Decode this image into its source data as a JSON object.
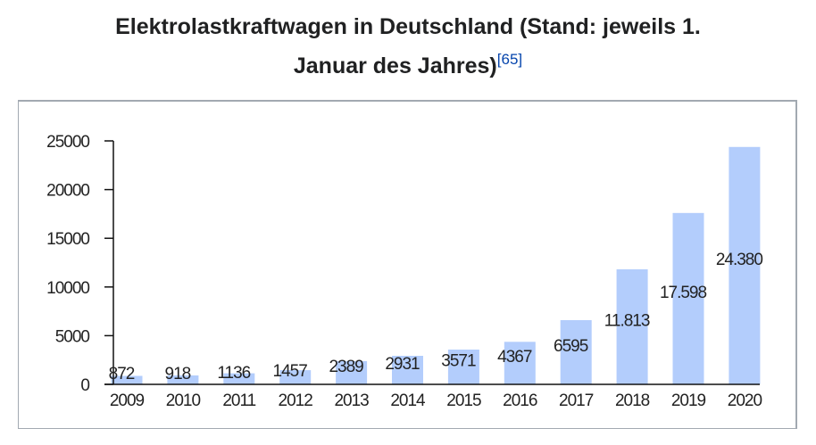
{
  "title_line1": "Elektrolastkraftwagen in Deutschland (Stand: jeweils 1.",
  "title_line2": "Januar des Jahres)",
  "reference": "[65]",
  "chart_data": {
    "type": "bar",
    "categories": [
      "2009",
      "2010",
      "2011",
      "2012",
      "2013",
      "2014",
      "2015",
      "2016",
      "2017",
      "2018",
      "2019",
      "2020"
    ],
    "values": [
      872,
      918,
      1136,
      1457,
      2389,
      2931,
      3571,
      4367,
      6595,
      11813,
      17598,
      24380
    ],
    "data_labels": [
      "872",
      "918",
      "1136",
      "1457",
      "2389",
      "2931",
      "3571",
      "4367",
      "6595",
      "11.813",
      "17.598",
      "24.380"
    ],
    "ylim": [
      0,
      25000
    ],
    "yticks": [
      "0",
      "5000",
      "10000",
      "15000",
      "20000",
      "25000"
    ],
    "bar_color": "#b3cdfc",
    "grid": false
  }
}
